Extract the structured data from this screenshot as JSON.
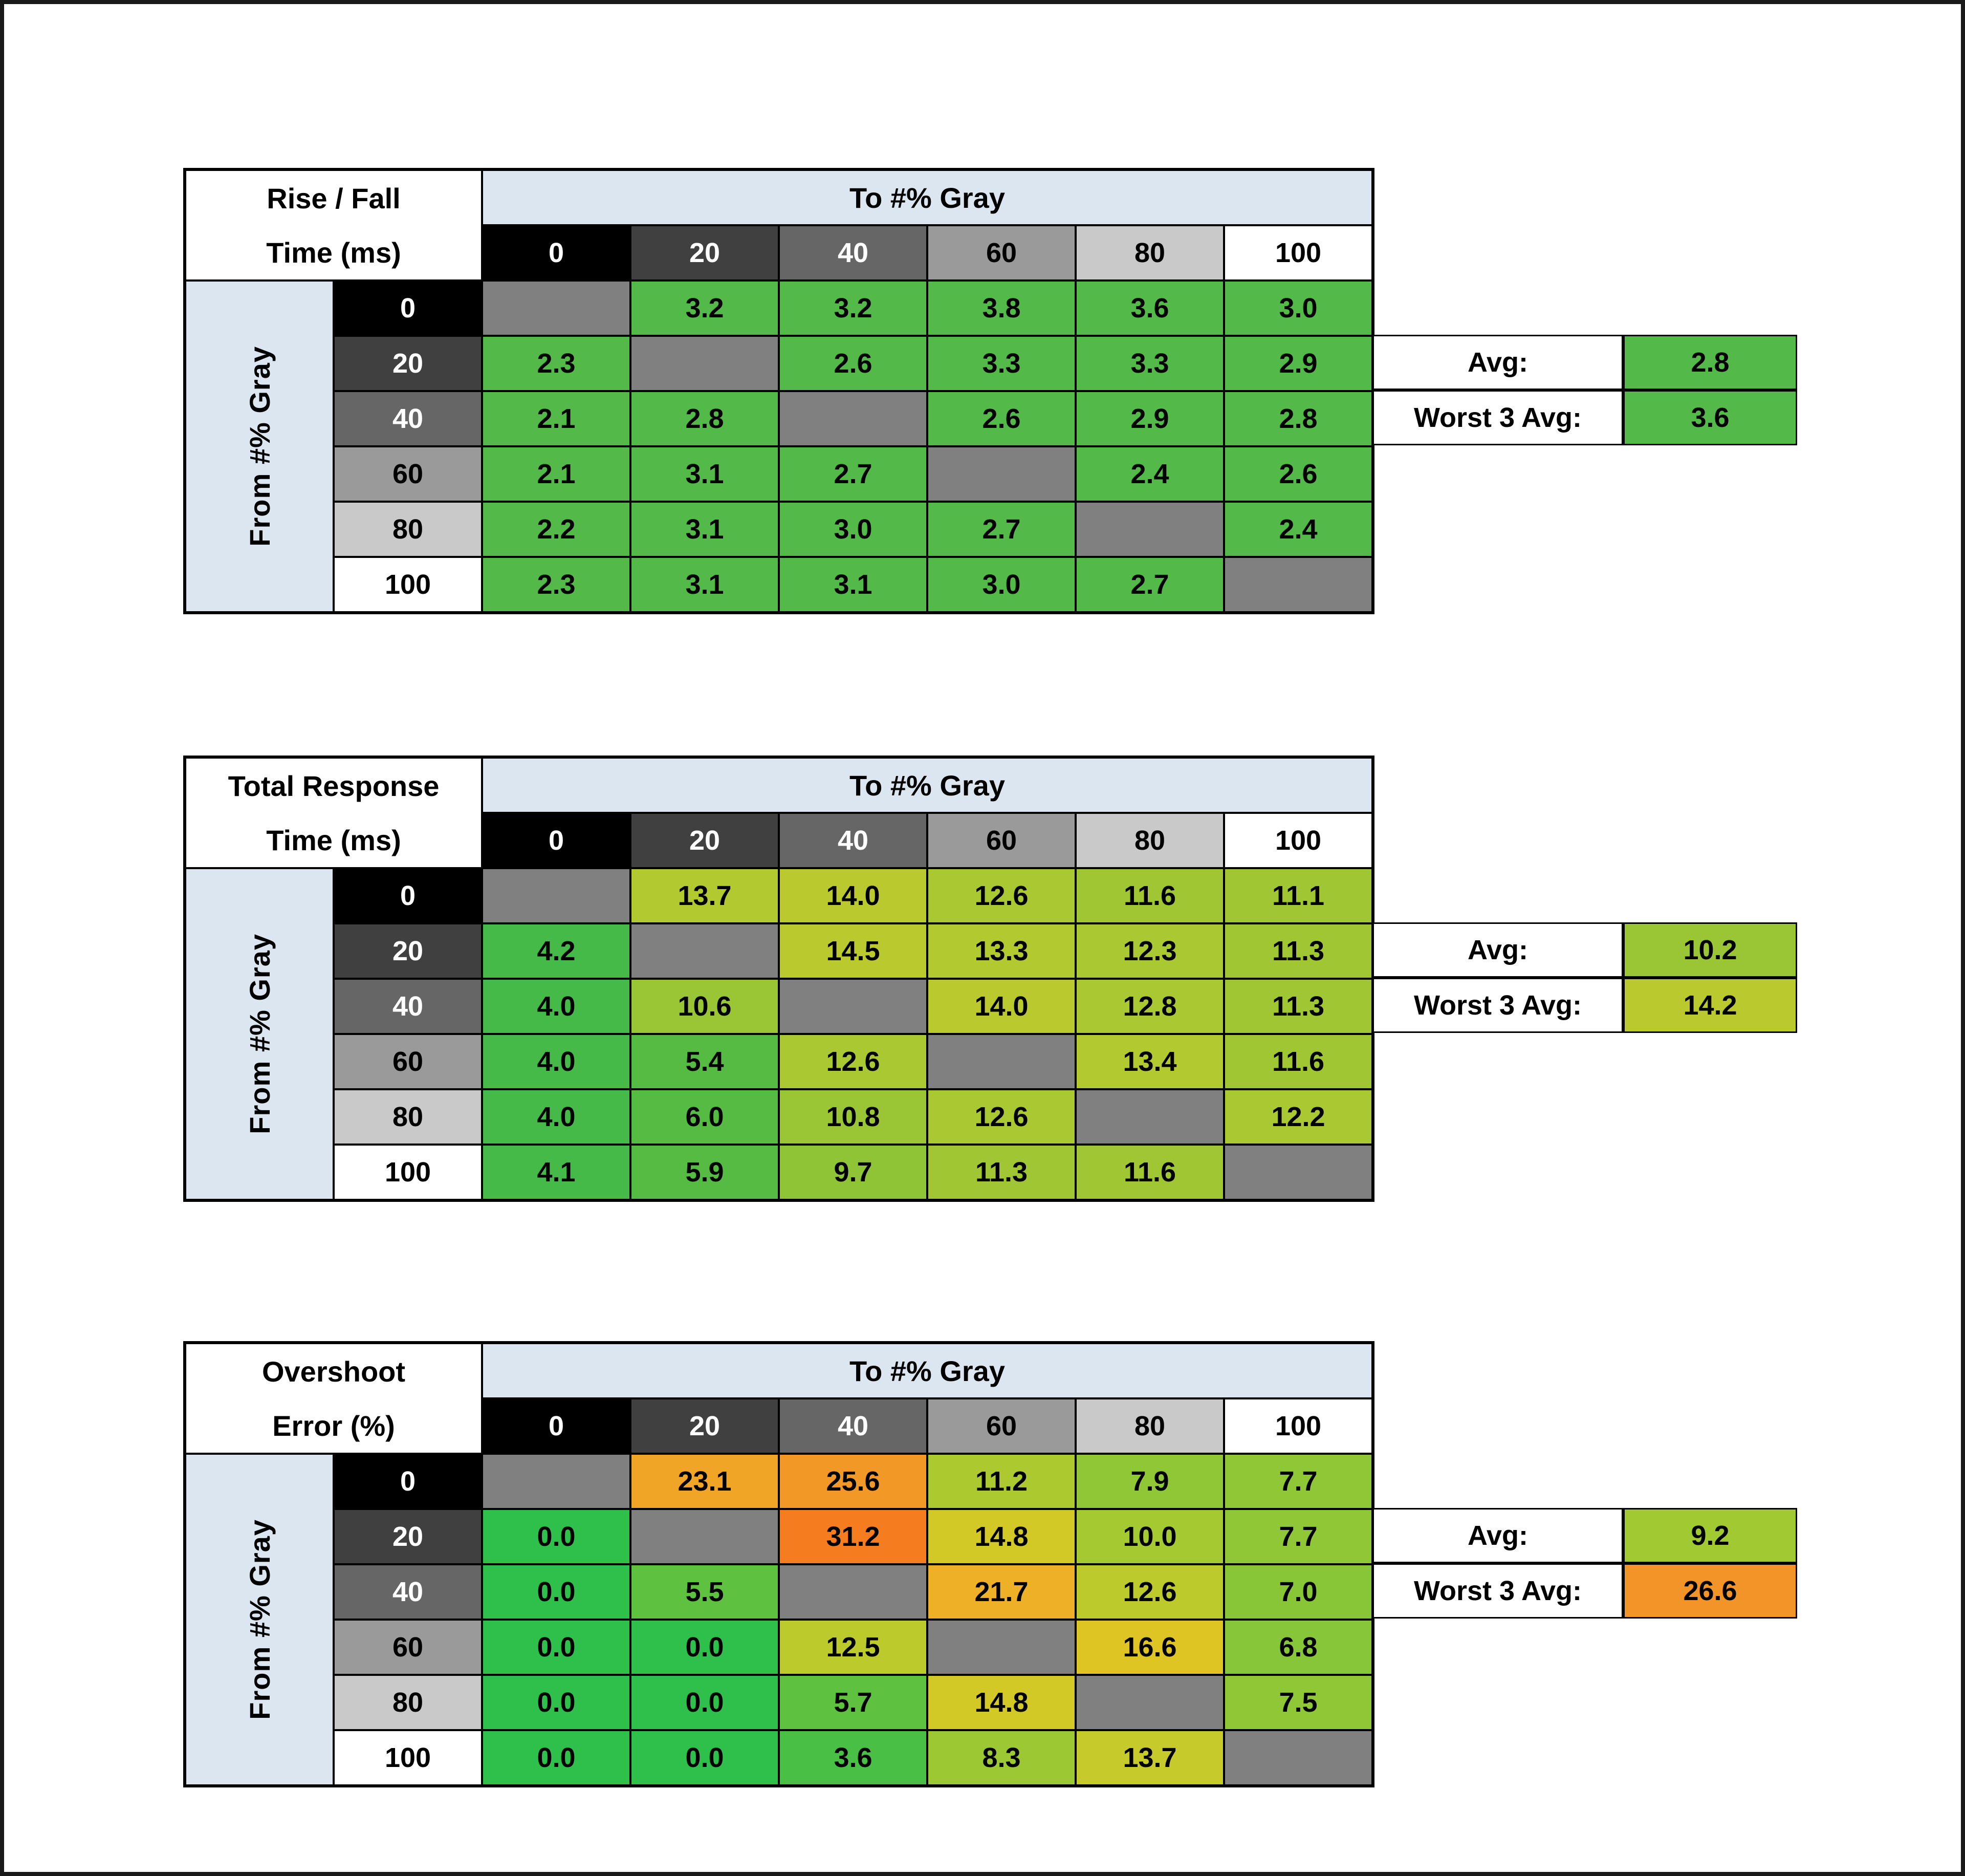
{
  "axis": {
    "col_title": "To #% Gray",
    "row_title": "From #% Gray"
  },
  "gray_scale": {
    "labels": [
      "0",
      "20",
      "40",
      "60",
      "80",
      "100"
    ],
    "bg": [
      "#000000",
      "#404040",
      "#666666",
      "#9a9a9a",
      "#c9c9c9",
      "#ffffff"
    ],
    "fg": [
      "#ffffff",
      "#ffffff",
      "#ffffff",
      "#000000",
      "#000000",
      "#000000"
    ]
  },
  "colors": {
    "header_band": "#dce6f1",
    "diagonal": "#808080",
    "border": "#000000",
    "background": "#ffffff"
  },
  "tables": [
    {
      "name": "rise-fall-time",
      "title": [
        "Rise / Fall",
        "Time (ms)"
      ],
      "values": [
        [
          null,
          "3.2",
          "3.2",
          "3.8",
          "3.6",
          "3.0"
        ],
        [
          "2.3",
          null,
          "2.6",
          "3.3",
          "3.3",
          "2.9"
        ],
        [
          "2.1",
          "2.8",
          null,
          "2.6",
          "2.9",
          "2.8"
        ],
        [
          "2.1",
          "3.1",
          "2.7",
          null,
          "2.4",
          "2.6"
        ],
        [
          "2.2",
          "3.1",
          "3.0",
          "2.7",
          null,
          "2.4"
        ],
        [
          "2.3",
          "3.1",
          "3.1",
          "3.0",
          "2.7",
          null
        ]
      ],
      "colors": [
        [
          null,
          "#53b948",
          "#53b948",
          "#53b948",
          "#53b948",
          "#53b948"
        ],
        [
          "#53b948",
          null,
          "#53b948",
          "#53b948",
          "#53b948",
          "#53b948"
        ],
        [
          "#53b948",
          "#53b948",
          null,
          "#53b948",
          "#53b948",
          "#53b948"
        ],
        [
          "#53b948",
          "#53b948",
          "#53b948",
          null,
          "#53b948",
          "#53b948"
        ],
        [
          "#53b948",
          "#53b948",
          "#53b948",
          "#53b948",
          null,
          "#53b948"
        ],
        [
          "#53b948",
          "#53b948",
          "#53b948",
          "#53b948",
          "#53b948",
          null
        ]
      ],
      "summary": {
        "avg_label": "Avg:",
        "avg_value": "2.8",
        "avg_color": "#53b948",
        "worst_label": "Worst 3 Avg:",
        "worst_value": "3.6",
        "worst_color": "#53b948"
      }
    },
    {
      "name": "total-response-time",
      "title": [
        "Total Response",
        "Time (ms)"
      ],
      "values": [
        [
          null,
          "13.7",
          "14.0",
          "12.6",
          "11.6",
          "11.1"
        ],
        [
          "4.2",
          null,
          "14.5",
          "13.3",
          "12.3",
          "11.3"
        ],
        [
          "4.0",
          "10.6",
          null,
          "14.0",
          "12.8",
          "11.3"
        ],
        [
          "4.0",
          "5.4",
          "12.6",
          null,
          "13.4",
          "11.6"
        ],
        [
          "4.0",
          "6.0",
          "10.8",
          "12.6",
          null,
          "12.2"
        ],
        [
          "4.1",
          "5.9",
          "9.7",
          "11.3",
          "11.6",
          null
        ]
      ],
      "colors": [
        [
          null,
          "#b2c930",
          "#bac92e",
          "#aac832",
          "#a0c634",
          "#a0c634"
        ],
        [
          "#45ba49",
          null,
          "#bac92e",
          "#b2c930",
          "#aac832",
          "#a0c634"
        ],
        [
          "#45ba49",
          "#9ac636",
          null,
          "#bac92e",
          "#aac832",
          "#a0c634"
        ],
        [
          "#45ba49",
          "#55bb43",
          "#aac832",
          null,
          "#b2c930",
          "#a0c634"
        ],
        [
          "#45ba49",
          "#55bb43",
          "#9ac636",
          "#aac832",
          null,
          "#aac832"
        ],
        [
          "#45ba49",
          "#55bb43",
          "#8fc437",
          "#a0c634",
          "#a0c634",
          null
        ]
      ],
      "summary": {
        "avg_label": "Avg:",
        "avg_value": "10.2",
        "avg_color": "#9ac636",
        "worst_label": "Worst 3 Avg:",
        "worst_value": "14.2",
        "worst_color": "#bac92e"
      }
    },
    {
      "name": "overshoot-error",
      "title": [
        "Overshoot",
        "Error (%)"
      ],
      "values": [
        [
          null,
          "23.1",
          "25.6",
          "11.2",
          "7.9",
          "7.7"
        ],
        [
          "0.0",
          null,
          "31.2",
          "14.8",
          "10.0",
          "7.7"
        ],
        [
          "0.0",
          "5.5",
          null,
          "21.7",
          "12.6",
          "7.0"
        ],
        [
          "0.0",
          "0.0",
          "12.5",
          null,
          "16.6",
          "6.8"
        ],
        [
          "0.0",
          "0.0",
          "5.7",
          "14.8",
          null,
          "7.5"
        ],
        [
          "0.0",
          "0.0",
          "3.6",
          "8.3",
          "13.7",
          null
        ]
      ],
      "colors": [
        [
          null,
          "#f0a527",
          "#f29827",
          "#adc930",
          "#8fc736",
          "#8fc736"
        ],
        [
          "#2ec04b",
          null,
          "#f57d1f",
          "#d2c927",
          "#a5c931",
          "#8fc736"
        ],
        [
          "#2ec04b",
          "#5fc140",
          null,
          "#edb026",
          "#bcca2c",
          "#89c637"
        ],
        [
          "#2ec04b",
          "#2ec04b",
          "#bcca2c",
          null,
          "#dec523",
          "#86c638"
        ],
        [
          "#2ec04b",
          "#2ec04b",
          "#5fc140",
          "#d2c927",
          null,
          "#8fc736"
        ],
        [
          "#2ec04b",
          "#2ec04b",
          "#49bf45",
          "#9bc833",
          "#c6ca2a",
          null
        ]
      ],
      "summary": {
        "avg_label": "Avg:",
        "avg_value": "9.2",
        "avg_color": "#a0c932",
        "worst_label": "Worst 3 Avg:",
        "worst_value": "26.6",
        "worst_color": "#f29427"
      }
    }
  ],
  "chart_data": [
    {
      "type": "heatmap",
      "title": "Rise / Fall Time (ms)",
      "xlabel": "To #% Gray",
      "ylabel": "From #% Gray",
      "x_categories": [
        0,
        20,
        40,
        60,
        80,
        100
      ],
      "y_categories": [
        0,
        20,
        40,
        60,
        80,
        100
      ],
      "values": [
        [
          null,
          3.2,
          3.2,
          3.8,
          3.6,
          3.0
        ],
        [
          2.3,
          null,
          2.6,
          3.3,
          3.3,
          2.9
        ],
        [
          2.1,
          2.8,
          null,
          2.6,
          2.9,
          2.8
        ],
        [
          2.1,
          3.1,
          2.7,
          null,
          2.4,
          2.6
        ],
        [
          2.2,
          3.1,
          3.0,
          2.7,
          null,
          2.4
        ],
        [
          2.3,
          3.1,
          3.1,
          3.0,
          2.7,
          null
        ]
      ],
      "avg": 2.8,
      "worst_3_avg": 3.6
    },
    {
      "type": "heatmap",
      "title": "Total Response Time (ms)",
      "xlabel": "To #% Gray",
      "ylabel": "From #% Gray",
      "x_categories": [
        0,
        20,
        40,
        60,
        80,
        100
      ],
      "y_categories": [
        0,
        20,
        40,
        60,
        80,
        100
      ],
      "values": [
        [
          null,
          13.7,
          14.0,
          12.6,
          11.6,
          11.1
        ],
        [
          4.2,
          null,
          14.5,
          13.3,
          12.3,
          11.3
        ],
        [
          4.0,
          10.6,
          null,
          14.0,
          12.8,
          11.3
        ],
        [
          4.0,
          5.4,
          12.6,
          null,
          13.4,
          11.6
        ],
        [
          4.0,
          6.0,
          10.8,
          12.6,
          null,
          12.2
        ],
        [
          4.1,
          5.9,
          9.7,
          11.3,
          11.6,
          null
        ]
      ],
      "avg": 10.2,
      "worst_3_avg": 14.2
    },
    {
      "type": "heatmap",
      "title": "Overshoot Error (%)",
      "xlabel": "To #% Gray",
      "ylabel": "From #% Gray",
      "x_categories": [
        0,
        20,
        40,
        60,
        80,
        100
      ],
      "y_categories": [
        0,
        20,
        40,
        60,
        80,
        100
      ],
      "values": [
        [
          null,
          23.1,
          25.6,
          11.2,
          7.9,
          7.7
        ],
        [
          0.0,
          null,
          31.2,
          14.8,
          10.0,
          7.7
        ],
        [
          0.0,
          5.5,
          null,
          21.7,
          12.6,
          7.0
        ],
        [
          0.0,
          0.0,
          12.5,
          null,
          16.6,
          6.8
        ],
        [
          0.0,
          0.0,
          5.7,
          14.8,
          null,
          7.5
        ],
        [
          0.0,
          0.0,
          3.6,
          8.3,
          13.7,
          null
        ]
      ],
      "avg": 9.2,
      "worst_3_avg": 26.6
    }
  ]
}
